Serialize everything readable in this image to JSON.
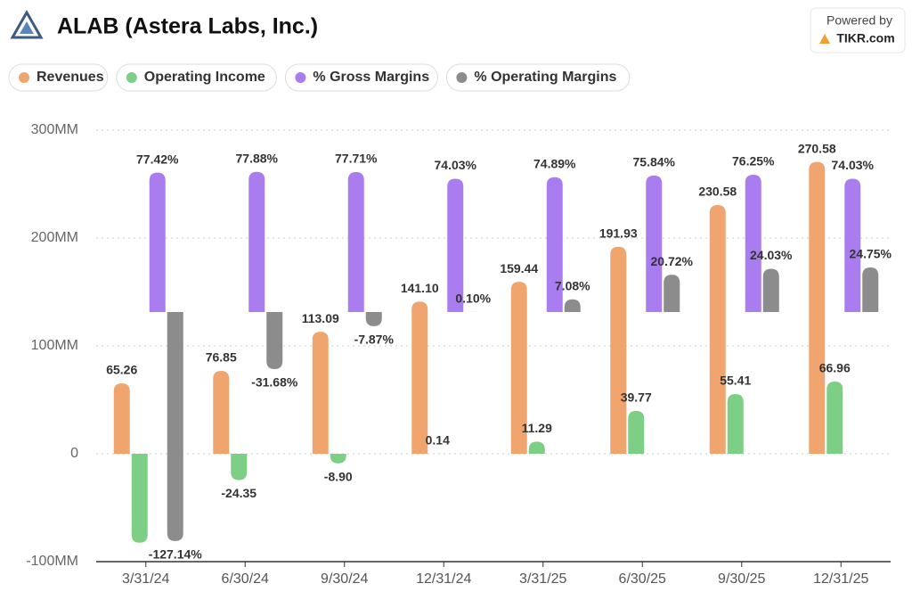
{
  "header": {
    "title": "ALAB (Astera Labs, Inc.)",
    "powered_by": "Powered by",
    "brand": "TIKR.com"
  },
  "chart_data": {
    "type": "bar",
    "categories": [
      "3/31/24",
      "6/30/24",
      "9/30/24",
      "12/31/24",
      "3/31/25",
      "6/30/25",
      "9/30/25",
      "12/31/25"
    ],
    "ylim": [
      -100,
      300
    ],
    "yticks": [
      {
        "value": -100,
        "label": "-100MM"
      },
      0,
      {
        "value": 100,
        "label": "100MM"
      },
      {
        "value": 200,
        "label": "200MM"
      },
      {
        "value": 300,
        "label": "300MM"
      }
    ],
    "y2lim": [
      -138.6,
      101
    ],
    "grid": true,
    "series": [
      {
        "name": "Revenues",
        "color": "#f0a56e",
        "values": [
          65.26,
          76.85,
          113.09,
          141.1,
          159.44,
          191.93,
          230.58,
          270.58
        ],
        "value_labels": [
          "65.26",
          "76.85",
          "113.09",
          "141.10",
          "159.44",
          "191.93",
          "230.58",
          "270.58"
        ]
      },
      {
        "name": "Operating Income",
        "color": "#7dcf86",
        "values": [
          -82.4,
          -24.35,
          -8.9,
          0.14,
          11.29,
          39.77,
          55.41,
          66.96
        ],
        "value_labels": [
          "",
          "-24.35",
          "-8.90",
          "0.14",
          "11.29",
          "39.77",
          "55.41",
          "66.96"
        ]
      },
      {
        "name": "% Gross Margins",
        "color": "#a97cf0",
        "axis": "y2",
        "values": [
          77.42,
          77.88,
          77.71,
          74.03,
          74.89,
          75.84,
          76.25,
          74.03
        ],
        "value_labels": [
          "77.42%",
          "77.88%",
          "77.71%",
          "74.03%",
          "74.89%",
          "75.84%",
          "76.25%",
          "74.03%"
        ]
      },
      {
        "name": "% Operating Margins",
        "color": "#8c8c8c",
        "axis": "y2",
        "values": [
          -127.14,
          -31.68,
          -7.87,
          0.1,
          7.08,
          20.72,
          24.03,
          24.75
        ],
        "value_labels": [
          "-127.14%",
          "-31.68%",
          "-7.87%",
          "0.10%",
          "7.08%",
          "20.72%",
          "24.03%",
          "24.75%"
        ]
      }
    ]
  }
}
